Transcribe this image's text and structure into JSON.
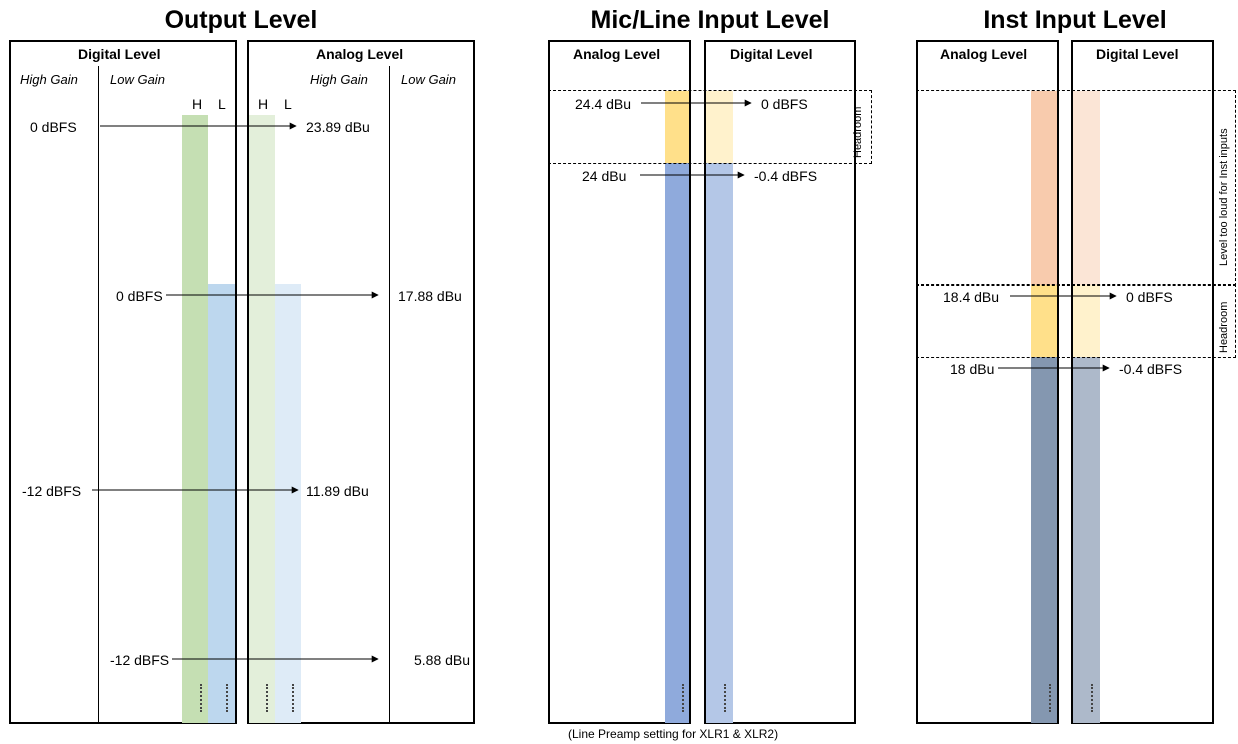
{
  "output": {
    "title": "Output Level",
    "digital_header": "Digital Level",
    "analog_header": "Analog Level",
    "high_gain": "High Gain",
    "low_gain": "Low Gain",
    "h_label": "H",
    "l_label": "L",
    "h2_label": "H",
    "l2_label": "L",
    "analog_high_gain": "High Gain",
    "analog_low_gain": "Low Gain",
    "rows": [
      {
        "from": "0 dBFS",
        "to": "23.89 dBu"
      },
      {
        "from": "0 dBFS",
        "to": "17.88 dBu"
      },
      {
        "from": "-12 dBFS",
        "to": "11.89 dBu"
      },
      {
        "from": "-12 dBFS",
        "to": "5.88 dBu"
      }
    ],
    "colors": {
      "green": "#c5dfb3",
      "green_light": "#e3efda",
      "blue": "#bdd7ee",
      "blue_light": "#deebf7"
    }
  },
  "mic": {
    "title": "Mic/Line Input Level",
    "analog_header": "Analog Level",
    "digital_header": "Digital Level",
    "rows": [
      {
        "from": "24.4 dBu",
        "to": "0 dBFS"
      },
      {
        "from": "24 dBu",
        "to": "-0.4 dBFS"
      }
    ],
    "headroom": "Headroom",
    "footnote": "(Line Preamp setting for XLR1 & XLR2)",
    "colors": {
      "yellow": "#ffe08a",
      "yellow_light": "#fff2cc",
      "blue": "#8faadc",
      "blue_light": "#b4c7e7"
    }
  },
  "inst": {
    "title": "Inst Input Level",
    "analog_header": "Analog Level",
    "digital_header": "Digital Level",
    "rows": [
      {
        "from": "18.4 dBu",
        "to": "0 dBFS"
      },
      {
        "from": "18 dBu",
        "to": "-0.4 dBFS"
      }
    ],
    "too_loud": "Level too loud for Inst inputs",
    "headroom": "Headroom",
    "colors": {
      "orange": "#f8cbad",
      "orange_light": "#fbe5d6",
      "yellow": "#ffe08a",
      "yellow_light": "#fff2cc",
      "slate": "#8497b0",
      "slate_light": "#adb9ca"
    }
  }
}
